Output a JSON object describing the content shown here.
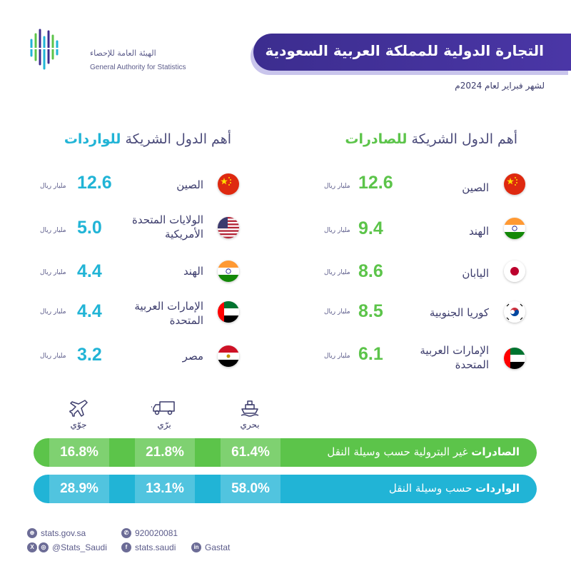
{
  "header": {
    "org_name_ar": "الهيئة العامة للإحصاء",
    "org_name_en": "General Authority for Statistics",
    "title": "التجارة الدولية للمملكة العربية السعودية",
    "subtitle": "لشهر فبراير لعام 2024م"
  },
  "exports": {
    "heading_prefix": "أهم الدول الشريكة",
    "heading_bold": "للصادرات",
    "unit": "مليار ريال",
    "items": [
      {
        "country": "الصين",
        "value": "12.6",
        "flag": "china-flag"
      },
      {
        "country": "الهند",
        "value": "9.4",
        "flag": "india-flag"
      },
      {
        "country": "اليابان",
        "value": "8.6",
        "flag": "japan-flag"
      },
      {
        "country": "كوريا الجنوبية",
        "value": "8.5",
        "flag": "korea-flag"
      },
      {
        "country": "الإمارات العربية المتحدة",
        "value": "6.1",
        "flag": "uae-flag"
      }
    ]
  },
  "imports": {
    "heading_prefix": "أهم الدول الشريكة",
    "heading_bold": "للواردات",
    "unit": "مليار ريال",
    "items": [
      {
        "country": "الصين",
        "value": "12.6",
        "flag": "china-flag"
      },
      {
        "country": "الولايات المتحدة الأمريكية",
        "value": "5.0",
        "flag": "usa-flag"
      },
      {
        "country": "الهند",
        "value": "4.4",
        "flag": "india-flag"
      },
      {
        "country": "الإمارات العربية المتحدة",
        "value": "4.4",
        "flag": "uae-flag"
      },
      {
        "country": "مصر",
        "value": "3.2",
        "flag": "egypt-flag"
      }
    ]
  },
  "transport": {
    "modes": [
      {
        "label": "بحري",
        "icon": "ship-icon"
      },
      {
        "label": "برّي",
        "icon": "truck-icon"
      },
      {
        "label": "جوّي",
        "icon": "airplane-icon"
      }
    ],
    "exports_bar": {
      "label_bold": "الصادرات",
      "label_rest": "غير البترولية حسب وسيلة النقل",
      "sea": "61.4%",
      "land": "21.8%",
      "air": "16.8%"
    },
    "imports_bar": {
      "label_bold": "الواردات",
      "label_rest": "حسب وسيلة النقل",
      "sea": "58.0%",
      "land": "13.1%",
      "air": "28.9%"
    }
  },
  "footer": {
    "website": "stats.gov.sa",
    "phone": "920020081",
    "twitter": "@Stats_Saudi",
    "facebook": "stats.saudi",
    "linkedin": "Gastat"
  },
  "colors": {
    "brand_purple": "#3c2d8f",
    "export_green": "#5cc44a",
    "import_blue": "#21b4d6"
  }
}
